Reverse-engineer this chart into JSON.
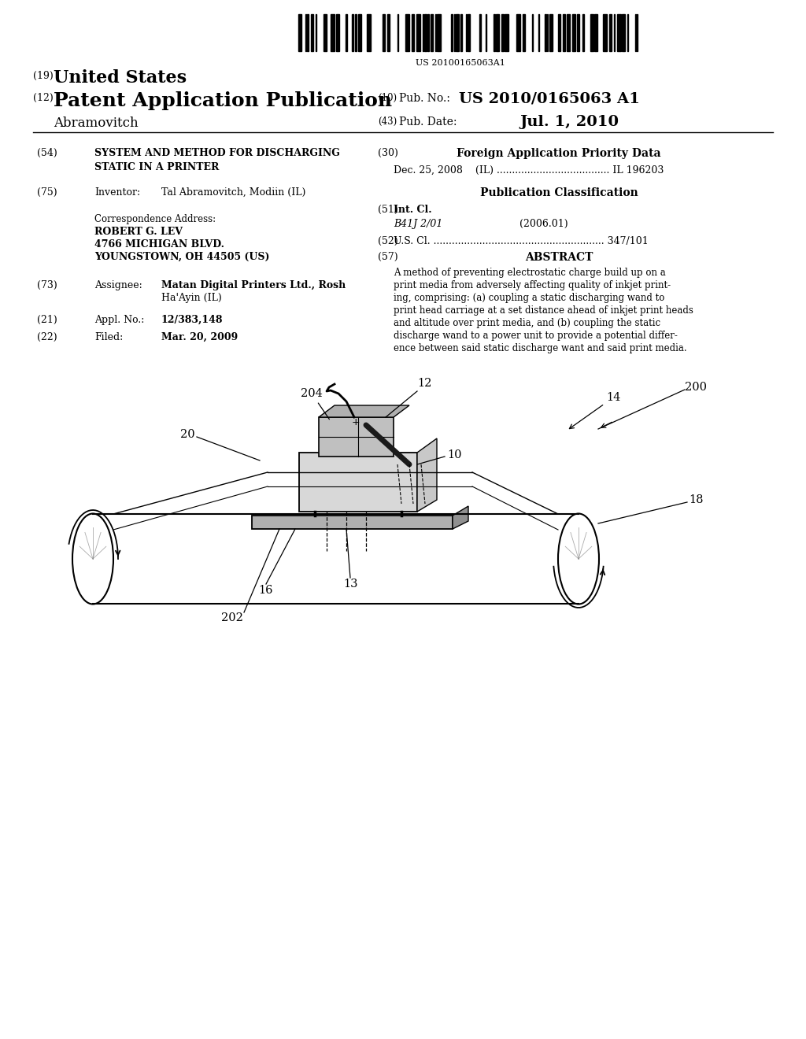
{
  "background_color": "#ffffff",
  "barcode_text": "US 20100165063A1",
  "title_19_small": "(19)",
  "title_19": "United States",
  "title_12_small": "(12)",
  "title_12": "Patent Application Publication",
  "pub_no_small": "(10)",
  "pub_no_label": "Pub. No.:",
  "pub_no_value": "US 2010/0165063 A1",
  "author_name": "Abramovitch",
  "pub_date_small": "(43)",
  "pub_date_label": "Pub. Date:",
  "pub_date_value": "Jul. 1, 2010",
  "field_54_label": "(54)",
  "field_54_line1": "SYSTEM AND METHOD FOR DISCHARGING",
  "field_54_line2": "STATIC IN A PRINTER",
  "field_75_label": "(75)",
  "field_75_title": "Inventor:",
  "field_75_value": "Tal Abramovitch, Modiin (IL)",
  "corr_address_label": "Correspondence Address:",
  "corr_line1": "ROBERT G. LEV",
  "corr_line2": "4766 MICHIGAN BLVD.",
  "corr_line3": "YOUNGSTOWN, OH 44505 (US)",
  "field_73_label": "(73)",
  "field_73_title": "Assignee:",
  "field_73_value1": "Matan Digital Printers Ltd., Rosh",
  "field_73_value2": "Ha'Ayin (IL)",
  "field_21_label": "(21)",
  "field_21_title": "Appl. No.:",
  "field_21_value": "12/383,148",
  "field_22_label": "(22)",
  "field_22_title": "Filed:",
  "field_22_value": "Mar. 20, 2009",
  "field_30_small": "(30)",
  "field_30_title": "Foreign Application Priority Data",
  "field_30_line": "Dec. 25, 2008    (IL) ..................................... IL 196203",
  "pub_class_title": "Publication Classification",
  "field_51_small": "(51)",
  "field_51_title": "Int. Cl.",
  "field_51_class": "B41J 2/01",
  "field_51_year": "(2006.01)",
  "field_52_small": "(52)",
  "field_52_text": "U.S. Cl. ........................................................ 347/101",
  "field_57_small": "(57)",
  "field_57_title": "ABSTRACT",
  "abstract_lines": [
    "A method of preventing electrostatic charge build up on a",
    "print media from adversely affecting quality of inkjet print-",
    "ing, comprising: (a) coupling a static discharging wand to",
    "print head carriage at a set distance ahead of inkjet print heads",
    "and altitude over print media, and (b) coupling the static",
    "discharge wand to a power unit to provide a potential differ-",
    "ence between said static discharge want and said print media."
  ]
}
